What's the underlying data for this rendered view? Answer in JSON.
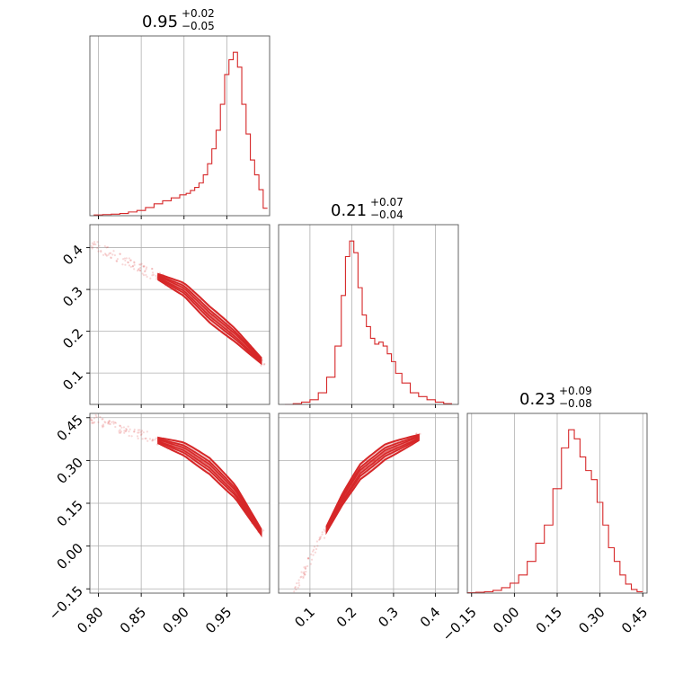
{
  "chart_data": {
    "type": "corner",
    "color": "#d62728",
    "grid": true,
    "parameters": [
      {
        "median": "0.95",
        "plus": "+0.02",
        "minus": "−0.05",
        "range": [
          0.79,
          1.0
        ],
        "ticks": [
          0.8,
          0.85,
          0.9,
          0.95
        ],
        "tick_labels": [
          "0.80",
          "0.85",
          "0.90",
          "0.95"
        ]
      },
      {
        "median": "0.21",
        "plus": "+0.07",
        "minus": "−0.04",
        "range": [
          0.025,
          0.455
        ],
        "ticks": [
          0.1,
          0.2,
          0.3,
          0.4
        ],
        "tick_labels": [
          "0.1",
          "0.2",
          "0.3",
          "0.4"
        ]
      },
      {
        "median": "0.23",
        "plus": "+0.09",
        "minus": "−0.08",
        "range": [
          -0.165,
          0.465
        ],
        "ticks": [
          -0.15,
          0.0,
          0.15,
          0.3,
          0.45
        ],
        "tick_labels": [
          "−0.15",
          "0.00",
          "0.15",
          "0.30",
          "0.45"
        ]
      }
    ],
    "histograms": [
      {
        "param": 0,
        "x": [
          0.8,
          0.81,
          0.82,
          0.83,
          0.84,
          0.85,
          0.86,
          0.87,
          0.88,
          0.89,
          0.9,
          0.905,
          0.91,
          0.915,
          0.92,
          0.925,
          0.93,
          0.935,
          0.94,
          0.945,
          0.95,
          0.955,
          0.96,
          0.965,
          0.97,
          0.975,
          0.98,
          0.985,
          0.99,
          0.995
        ],
        "y": [
          2,
          3,
          4,
          6,
          10,
          14,
          22,
          32,
          40,
          48,
          56,
          60,
          68,
          76,
          88,
          110,
          140,
          180,
          230,
          300,
          380,
          420,
          440,
          400,
          300,
          220,
          150,
          110,
          70,
          20
        ]
      },
      {
        "param": 1,
        "x": [
          0.05,
          0.07,
          0.09,
          0.11,
          0.13,
          0.15,
          0.17,
          0.18,
          0.19,
          0.2,
          0.21,
          0.22,
          0.23,
          0.24,
          0.25,
          0.26,
          0.27,
          0.28,
          0.29,
          0.3,
          0.31,
          0.33,
          0.35,
          0.37,
          0.39,
          0.41,
          0.43
        ],
        "y": [
          0,
          2,
          6,
          12,
          30,
          70,
          150,
          280,
          380,
          420,
          390,
          300,
          230,
          200,
          170,
          155,
          160,
          150,
          130,
          110,
          80,
          55,
          30,
          20,
          12,
          6,
          2
        ]
      },
      {
        "param": 2,
        "x": [
          -0.15,
          -0.12,
          -0.09,
          -0.06,
          -0.03,
          0.0,
          0.03,
          0.06,
          0.09,
          0.12,
          0.15,
          0.18,
          0.2,
          0.22,
          0.24,
          0.26,
          0.28,
          0.3,
          0.32,
          0.34,
          0.36,
          0.38,
          0.4,
          0.42,
          0.44
        ],
        "y": [
          1,
          2,
          3,
          6,
          12,
          22,
          40,
          70,
          110,
          150,
          230,
          320,
          360,
          340,
          300,
          270,
          250,
          200,
          150,
          100,
          70,
          40,
          20,
          8,
          3
        ]
      }
    ],
    "pairs": [
      {
        "x_param": 0,
        "y_param": 1,
        "curve_x": [
          0.87,
          0.9,
          0.93,
          0.96,
          0.99
        ],
        "curve_y": [
          0.33,
          0.3,
          0.24,
          0.19,
          0.13
        ]
      },
      {
        "x_param": 0,
        "y_param": 2,
        "curve_x": [
          0.87,
          0.9,
          0.93,
          0.96,
          0.99
        ],
        "curve_y": [
          0.37,
          0.34,
          0.28,
          0.19,
          0.05
        ]
      },
      {
        "x_param": 1,
        "y_param": 2,
        "curve_x": [
          0.14,
          0.18,
          0.22,
          0.28,
          0.36
        ],
        "curve_y": [
          0.06,
          0.17,
          0.26,
          0.33,
          0.38
        ]
      }
    ]
  }
}
